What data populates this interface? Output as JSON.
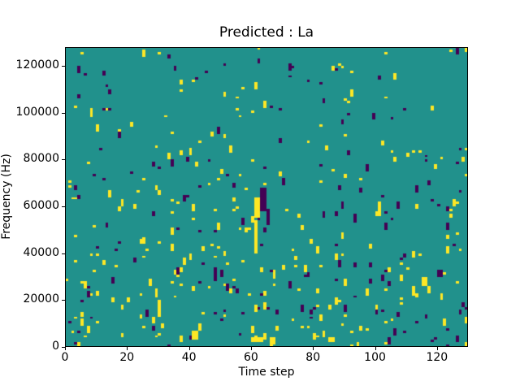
{
  "figure": {
    "background_color": "#ffffff",
    "frame_color": "#000000",
    "text_color": "#000000"
  },
  "chart_data": {
    "type": "heatmap",
    "title": "Predicted : La",
    "xlabel": "Time step",
    "ylabel": "Frequency (Hz)",
    "x_range": [
      0,
      130
    ],
    "y_range": [
      0,
      128000
    ],
    "x_ticks": [
      0,
      20,
      40,
      60,
      80,
      100,
      120
    ],
    "y_ticks": [
      0,
      20000,
      40000,
      60000,
      80000,
      100000,
      120000
    ],
    "grid": {
      "cols": 130,
      "rows": 128
    },
    "legend": "none",
    "gridlines": "off",
    "colormap": {
      "name": "viridis (3-level)",
      "low_color": "#440154",
      "mid_color": "#21918c",
      "high_color": "#fde725"
    },
    "background_value": "mid",
    "noise_pattern": {
      "seed": 20240613,
      "bands": [
        {
          "rows": [
            0,
            41
          ],
          "p_high": 0.022,
          "p_low": 0.012
        },
        {
          "rows": [
            42,
            84
          ],
          "p_high": 0.013,
          "p_low": 0.011
        },
        {
          "rows": [
            85,
            127
          ],
          "p_high": 0.007,
          "p_low": 0.007
        }
      ],
      "streak_extend_p": 0.45,
      "streak_max_extra": 2
    },
    "features": [
      {
        "col": 61,
        "row": 40,
        "w": 1,
        "h": 14,
        "value": "high"
      },
      {
        "col": 61,
        "row": 55,
        "w": 2,
        "h": 9,
        "value": "high"
      },
      {
        "col": 63,
        "row": 58,
        "w": 2,
        "h": 10,
        "value": "low"
      },
      {
        "col": 65,
        "row": 52,
        "w": 1,
        "h": 7,
        "value": "low"
      },
      {
        "col": 60,
        "row": 2,
        "w": 4,
        "h": 2,
        "value": "high"
      },
      {
        "col": 66,
        "row": 1,
        "w": 2,
        "h": 3,
        "value": "high"
      },
      {
        "col": 30,
        "row": 13,
        "w": 1,
        "h": 7,
        "value": "high"
      },
      {
        "col": 29,
        "row": 21,
        "w": 1,
        "h": 4,
        "value": "high"
      },
      {
        "col": 41,
        "row": 3,
        "w": 2,
        "h": 4,
        "value": "high"
      },
      {
        "col": 43,
        "row": 7,
        "w": 1,
        "h": 3,
        "value": "high"
      },
      {
        "col": 85,
        "row": 2,
        "w": 2,
        "h": 2,
        "value": "high"
      },
      {
        "col": 48,
        "row": 28,
        "w": 1,
        "h": 6,
        "value": "low"
      },
      {
        "col": 112,
        "row": 22,
        "w": 1,
        "h": 4,
        "value": "high"
      },
      {
        "col": 115,
        "row": 26,
        "w": 2,
        "h": 4,
        "value": "high"
      },
      {
        "col": 120,
        "row": 30,
        "w": 2,
        "h": 3,
        "value": "low"
      },
      {
        "col": 8,
        "row": 98,
        "w": 1,
        "h": 4,
        "value": "high"
      },
      {
        "col": 129,
        "row": 126,
        "w": 1,
        "h": 2,
        "value": "high"
      }
    ]
  }
}
